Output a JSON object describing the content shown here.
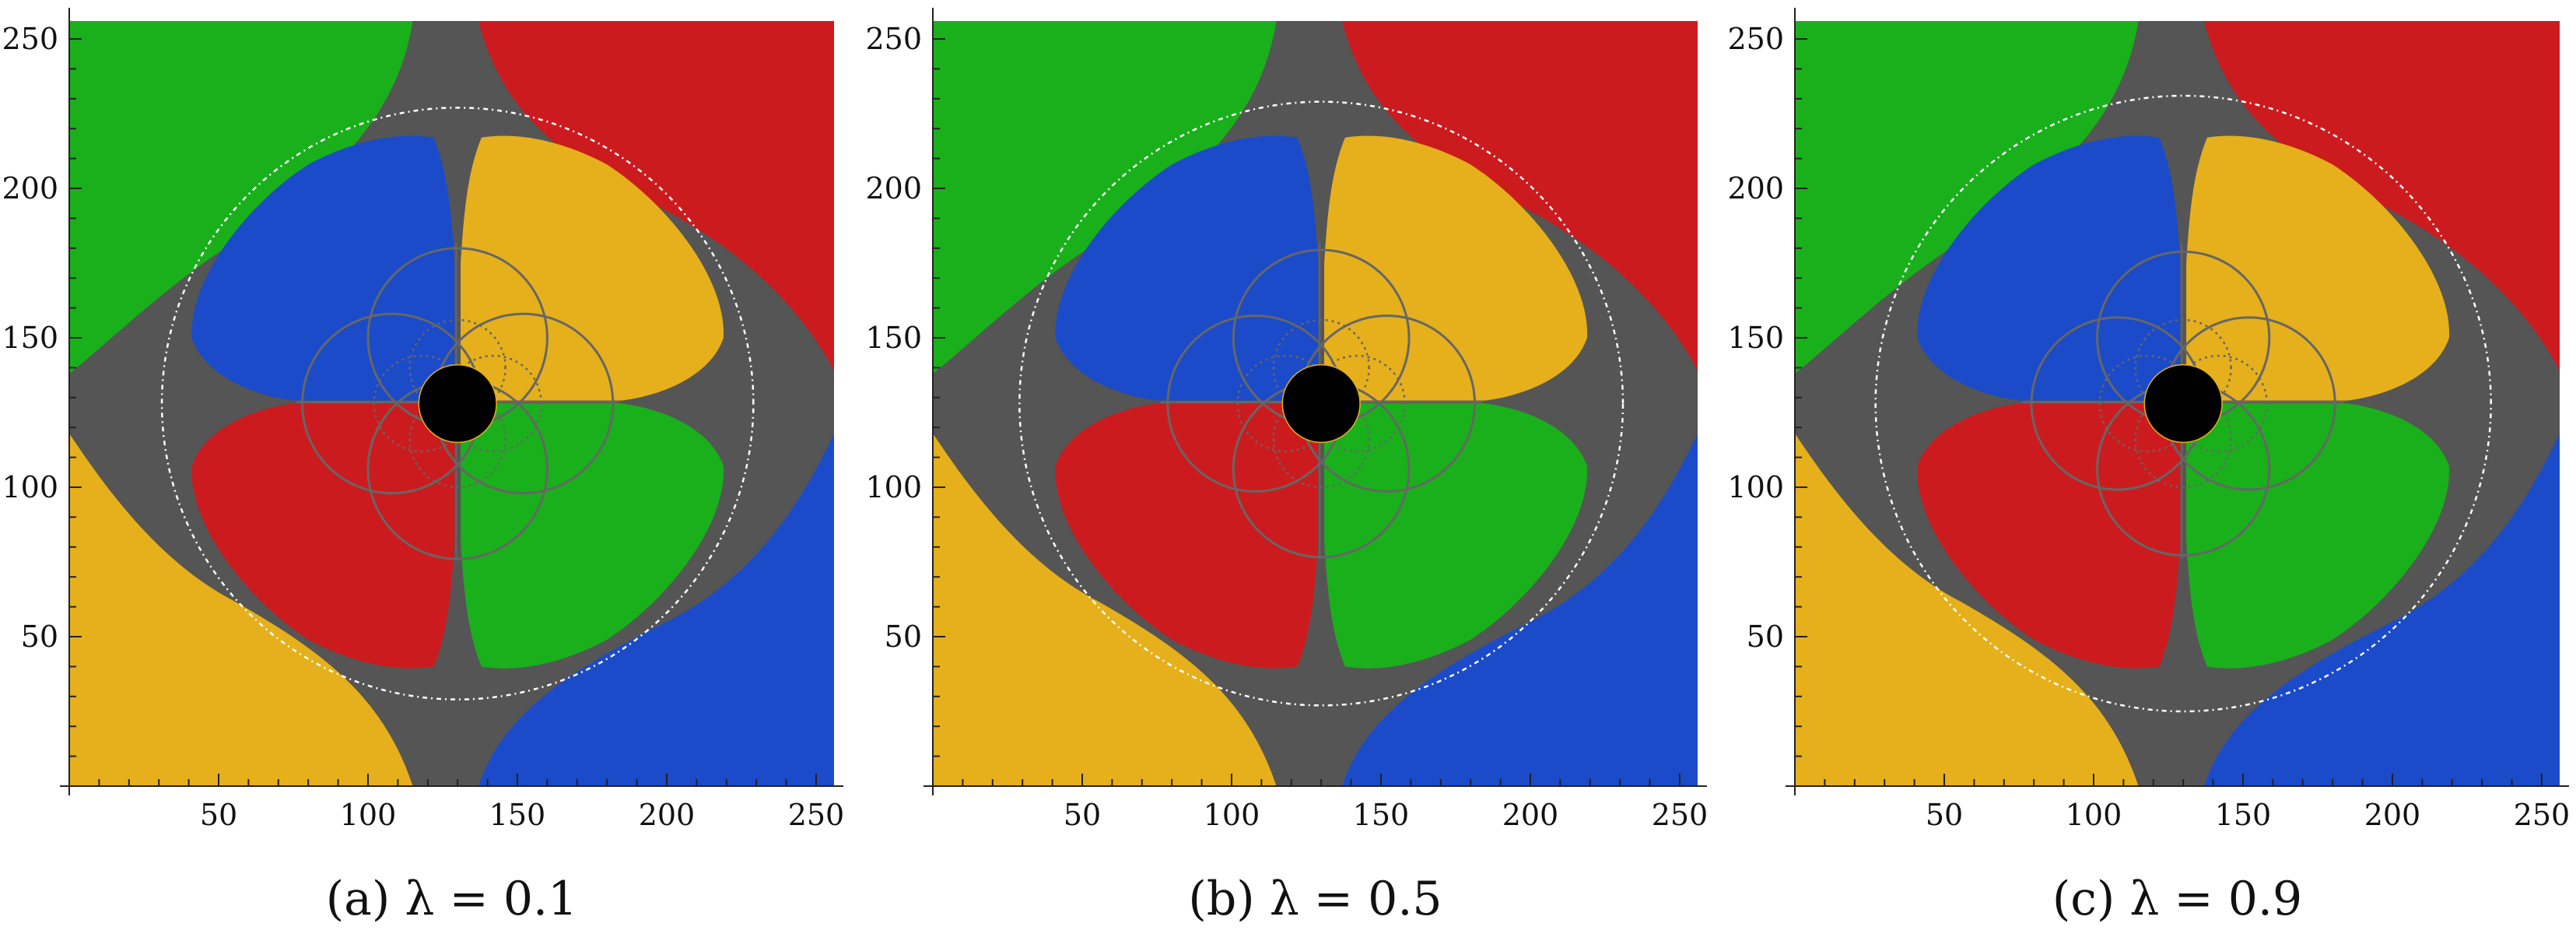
{
  "chart_data": {
    "type": "heatmap",
    "description_kind": "image-plot",
    "xlim": [
      0,
      256
    ],
    "ylim": [
      0,
      256
    ],
    "xticks": [
      50,
      100,
      150,
      200,
      250
    ],
    "yticks": [
      50,
      100,
      150,
      200,
      250
    ],
    "minor_tick_step": 10,
    "grid": false,
    "colors": {
      "background": "#555555",
      "green": "#1ab01c",
      "red": "#cc1b1e",
      "blue": "#1b4bc8",
      "yellow": "#e5b01c",
      "shadow": "#000000",
      "ring": "#ffffff",
      "curves": "#666666"
    },
    "panels": [
      {
        "caption": "(a)  λ = 0.1",
        "lambda": 0.1
      },
      {
        "caption": "(b)  λ = 0.5",
        "lambda": 0.5
      },
      {
        "caption": "(c)  λ = 0.9",
        "lambda": 0.9
      }
    ]
  }
}
